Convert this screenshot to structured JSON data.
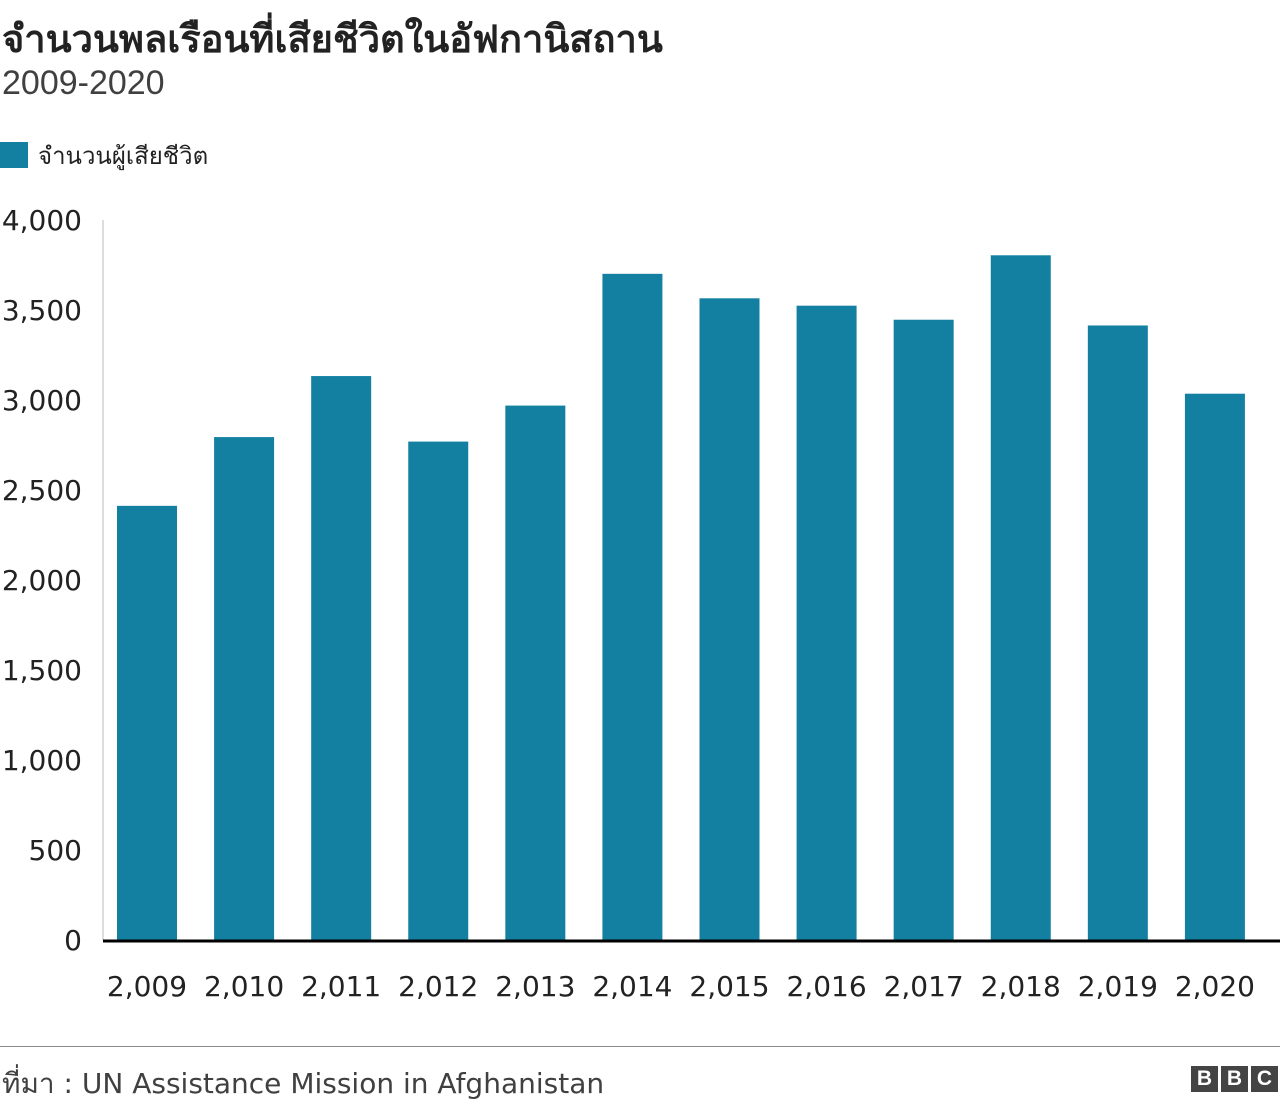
{
  "title": "จำนวนพลเรือนที่เสียชีวิตในอัฟกานิสถาน",
  "subtitle": "2009-2020",
  "source": "ที่มา : UN Assistance Mission in Afghanistan",
  "logo": [
    "B",
    "B",
    "C"
  ],
  "colors": {
    "bar": "#1380A1",
    "axis": "#000000"
  },
  "chart_data": {
    "type": "bar",
    "title": "จำนวนพลเรือนที่เสียชีวิตในอัฟกานิสถาน",
    "subtitle": "2009-2020",
    "categories": [
      "2,009",
      "2,010",
      "2,011",
      "2,012",
      "2,013",
      "2,014",
      "2,015",
      "2,016",
      "2,017",
      "2,018",
      "2,019",
      "2,020"
    ],
    "series": [
      {
        "name": "จำนวนผู้เสียชีวิต",
        "color": "#1380A1",
        "values": [
          2412,
          2794,
          3133,
          2769,
          2969,
          3701,
          3565,
          3524,
          3446,
          3804,
          3414,
          3035
        ]
      }
    ],
    "ylim": [
      0,
      4000
    ],
    "yticks": [
      0,
      500,
      1000,
      1500,
      2000,
      2500,
      3000,
      3500,
      4000
    ],
    "ytick_labels": [
      "0",
      "500",
      "1,000",
      "1,500",
      "2,000",
      "2,500",
      "3,000",
      "3,500",
      "4,000"
    ],
    "grid": false,
    "legend": "top-left"
  }
}
